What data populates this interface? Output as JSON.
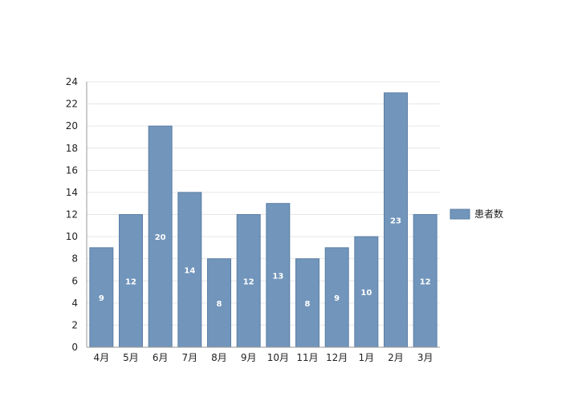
{
  "chart_data": {
    "type": "bar",
    "categories": [
      "4月",
      "5月",
      "6月",
      "7月",
      "8月",
      "9月",
      "10月",
      "11月",
      "12月",
      "1月",
      "2月",
      "3月"
    ],
    "series": [
      {
        "name": "患者数",
        "values": [
          9,
          12,
          20,
          14,
          8,
          12,
          13,
          8,
          9,
          10,
          23,
          12
        ]
      }
    ],
    "y_ticks": [
      "0",
      "2",
      "4",
      "6",
      "8",
      "10",
      "12",
      "14",
      "16",
      "18",
      "20",
      "22",
      "24"
    ],
    "ylim": [
      0,
      24
    ],
    "grid": true,
    "data_labels": true,
    "legend_position": "right",
    "colors": {
      "bar": "#7295bb",
      "bar_edge": "#5b7ea6",
      "grid": "#e6e6e6",
      "axis": "#999999"
    }
  }
}
